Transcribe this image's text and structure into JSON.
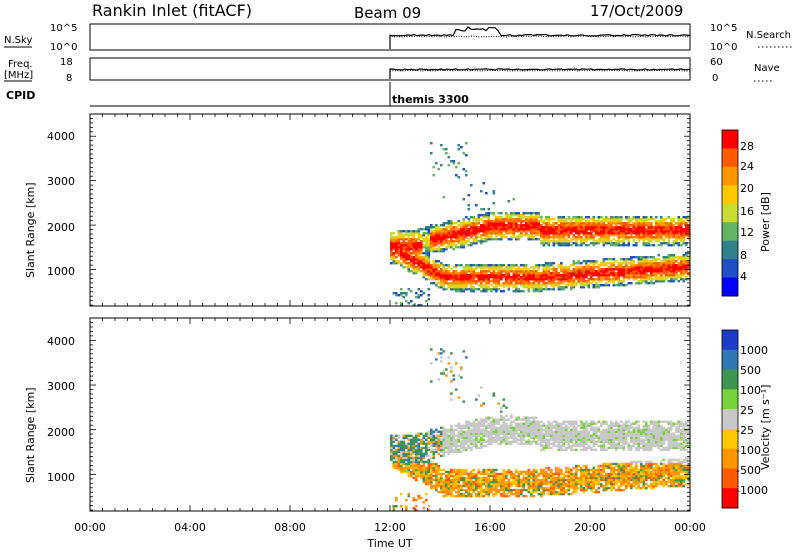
{
  "header": {
    "station": "Rankin Inlet (fitACF)",
    "beam": "Beam 09",
    "date": "17/Oct/2009"
  },
  "top_panels": {
    "nsky_label": "N.Sky",
    "nsky_ticks": [
      "10^5",
      "10^0"
    ],
    "nsearch_label": "N.Search",
    "nsearch_ticks": [
      "10^5",
      "10^0"
    ],
    "freq_label": "Freq.",
    "freq_unit": "[MHz]",
    "freq_ticks": [
      "18",
      "8"
    ],
    "nave_label": "Nave",
    "nave_ticks": [
      "60",
      "0"
    ],
    "cpid_label": "CPID",
    "cpid_value": "themis 3300"
  },
  "chart_data": [
    {
      "type": "heatmap",
      "name": "power",
      "ylabel": "Slant Range [km]",
      "xlabel": "Time UT",
      "ylim": [
        180,
        4500
      ],
      "xlim": [
        0,
        24
      ],
      "yticks": [
        "4000",
        "3000",
        "2000",
        "1000"
      ],
      "colorbar_label": "Power [dB]",
      "colorbar_ticks": [
        "28",
        "24",
        "20",
        "16",
        "12",
        "8",
        "4"
      ],
      "colorbar_colors": [
        "#ff0000",
        "#ff5a00",
        "#ff9600",
        "#ffc800",
        "#c8dc32",
        "#64b464",
        "#32828c",
        "#1e50c8",
        "#0000ff"
      ],
      "data_start_hour": 12
    },
    {
      "type": "heatmap",
      "name": "velocity",
      "ylabel": "Slant Range [km]",
      "xlabel": "Time UT",
      "ylim": [
        180,
        4500
      ],
      "xlim": [
        0,
        24
      ],
      "yticks": [
        "4000",
        "3000",
        "2000",
        "1000"
      ],
      "colorbar_label": "Velocity [m s⁻¹]",
      "colorbar_ticks": [
        "1000",
        "500",
        "100",
        "25",
        "-25",
        "-100",
        "-500",
        "-1000"
      ],
      "colorbar_colors": [
        "#1e3cc8",
        "#3278b4",
        "#3c9650",
        "#78d23c",
        "#c8c8c8",
        "#ffc800",
        "#ff9600",
        "#ff5a00",
        "#ff0000"
      ],
      "data_start_hour": 12
    }
  ],
  "xaxis": {
    "title": "Time UT",
    "ticks": [
      "00:00",
      "04:00",
      "08:00",
      "12:00",
      "16:00",
      "20:00",
      "00:00"
    ]
  }
}
